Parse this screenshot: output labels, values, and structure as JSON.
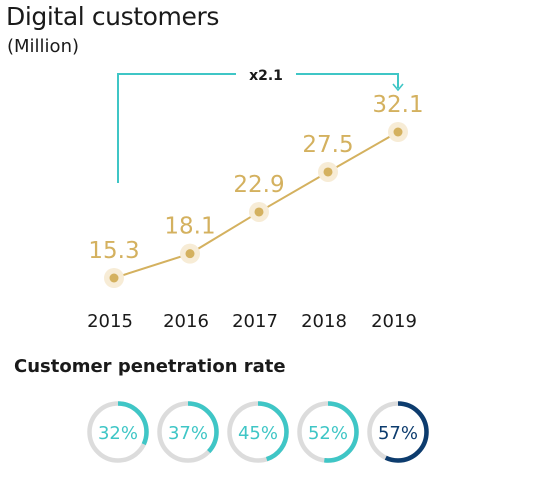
{
  "chart_data": [
    {
      "type": "line",
      "title": "Digital customers",
      "subtitle": "(Million)",
      "categories": [
        "2015",
        "2016",
        "2017",
        "2018",
        "2019"
      ],
      "values": [
        15.3,
        18.1,
        22.9,
        27.5,
        32.1
      ],
      "data_labels": [
        "15.3",
        "18.1",
        "22.9",
        "27.5",
        "32.1"
      ],
      "annotation": "x2.1",
      "color": "#d4b15f",
      "annotation_color": "#3fc6c6"
    },
    {
      "type": "pie",
      "title": "Customer penetration rate",
      "categories": [
        "2015",
        "2016",
        "2017",
        "2018",
        "2019"
      ],
      "values": [
        32,
        37,
        45,
        52,
        57
      ],
      "labels": [
        "32%",
        "37%",
        "45%",
        "52%",
        "57%"
      ],
      "colors": [
        "#3fc6c6",
        "#3fc6c6",
        "#3fc6c6",
        "#3fc6c6",
        "#0d3c6e"
      ],
      "track_color": "#dcdcdc"
    }
  ]
}
